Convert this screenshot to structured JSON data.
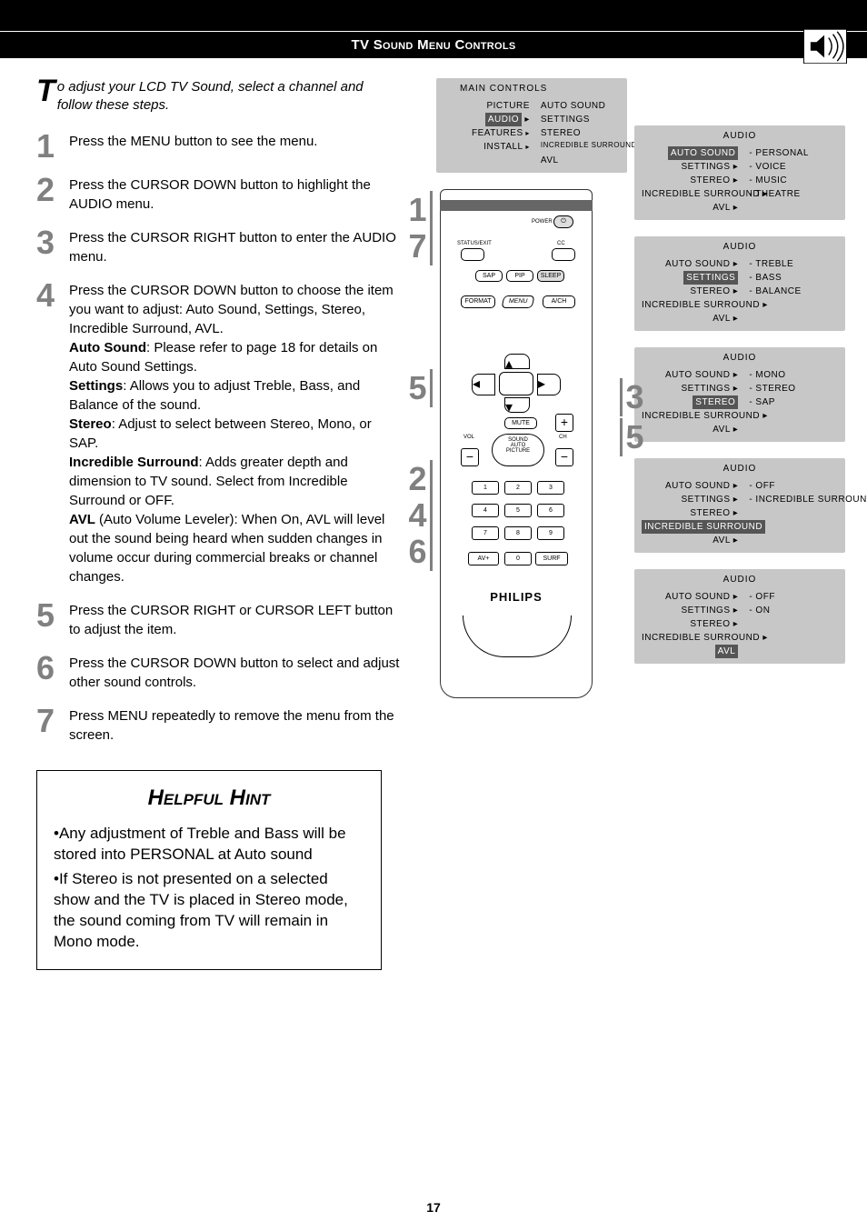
{
  "header": {
    "title": "TV Sound Menu Controls"
  },
  "intro": "o adjust your LCD TV Sound, select a channel and follow these steps.",
  "introCap": "T",
  "steps": [
    {
      "n": "1",
      "body": "Press the MENU button to see the menu."
    },
    {
      "n": "2",
      "body": "Press the CURSOR DOWN button to highlight the AUDIO menu."
    },
    {
      "n": "3",
      "body": "Press the CURSOR RIGHT button to enter the AUDIO menu."
    },
    {
      "n": "4",
      "body": "Press the CURSOR DOWN button to choose the item you want to adjust: Auto Sound, Settings, Stereo, Incredible Surround, AVL.",
      "sub": [
        {
          "label": "Auto Sound",
          "text": ": Please refer to page 18 for details on Auto Sound Settings."
        },
        {
          "label": "Settings",
          "text": ": Allows you to adjust Treble, Bass, and Balance of the sound."
        },
        {
          "label": "Stereo",
          "text": ": Adjust to select between Stereo, Mono, or SAP."
        },
        {
          "label": "Incredible Surround",
          "text": ": Adds greater depth and dimension to TV sound. Select from Incredible Surround or OFF."
        },
        {
          "label": "AVL",
          "text": " (Auto Volume Leveler): When On, AVL will level out the sound being heard when sudden changes in volume occur during commercial breaks or channel changes."
        }
      ]
    },
    {
      "n": "5",
      "body": "Press the CURSOR RIGHT or CURSOR LEFT button to adjust the item."
    },
    {
      "n": "6",
      "body": "Press the CURSOR DOWN button to select and adjust other sound controls."
    },
    {
      "n": "7",
      "body": "Press MENU repeatedly to remove the menu from the screen."
    }
  ],
  "hint": {
    "title": "Helpful Hint",
    "lines": [
      "•Any adjustment of Treble and Bass will be stored into PERSONAL at Auto sound",
      "•If Stereo is not presented on a selected show and the TV is placed in Stereo mode, the sound coming from TV will remain in Mono mode."
    ]
  },
  "pageNumber": "17",
  "mainMenu": {
    "title": "MAIN CONTROLS",
    "left": [
      "PICTURE",
      "AUDIO",
      "FEATURES",
      "INSTALL"
    ],
    "right": [
      "AUTO SOUND",
      "SETTINGS",
      "STEREO",
      "INCREDIBLE SURROUND",
      "AVL"
    ],
    "hlLeft": "AUDIO"
  },
  "audio": [
    {
      "hl": "AUTO SOUND",
      "right": [
        "PERSONAL",
        "VOICE",
        "MUSIC",
        "THEATRE"
      ]
    },
    {
      "hl": "SETTINGS",
      "right": [
        "TREBLE",
        "BASS",
        "BALANCE"
      ]
    },
    {
      "hl": "STEREO",
      "right": [
        "MONO",
        "STEREO",
        "SAP"
      ]
    },
    {
      "hl": "INCREDIBLE SURROUND",
      "right": [
        "OFF",
        "INCREDIBLE SURROUND"
      ]
    },
    {
      "hl": "AVL",
      "right": [
        "OFF",
        "ON"
      ]
    }
  ],
  "audioLeft": [
    "AUTO SOUND",
    "SETTINGS",
    "STEREO",
    "INCREDIBLE SURROUND",
    "AVL"
  ],
  "remote": {
    "labels": {
      "power": "POWER",
      "status": "STATUS/EXIT",
      "cc": "CC",
      "sap": "SAP",
      "pip": "PIP",
      "sleep": "SLEEP",
      "format": "FORMAT",
      "menu": "MENU",
      "avch": "A/CH",
      "mute": "MUTE",
      "sound": "SOUND",
      "auto": "AUTO",
      "picture": "PICTURE",
      "vol": "VOL",
      "ch": "CH",
      "av": "AV+",
      "zero": "0",
      "surf": "SURF",
      "brand": "PHILIPS"
    },
    "numsL": [
      "1",
      "7"
    ],
    "numsLB": [
      "5",
      "2",
      "4",
      "6"
    ],
    "numsR": [
      "3",
      "5"
    ]
  }
}
